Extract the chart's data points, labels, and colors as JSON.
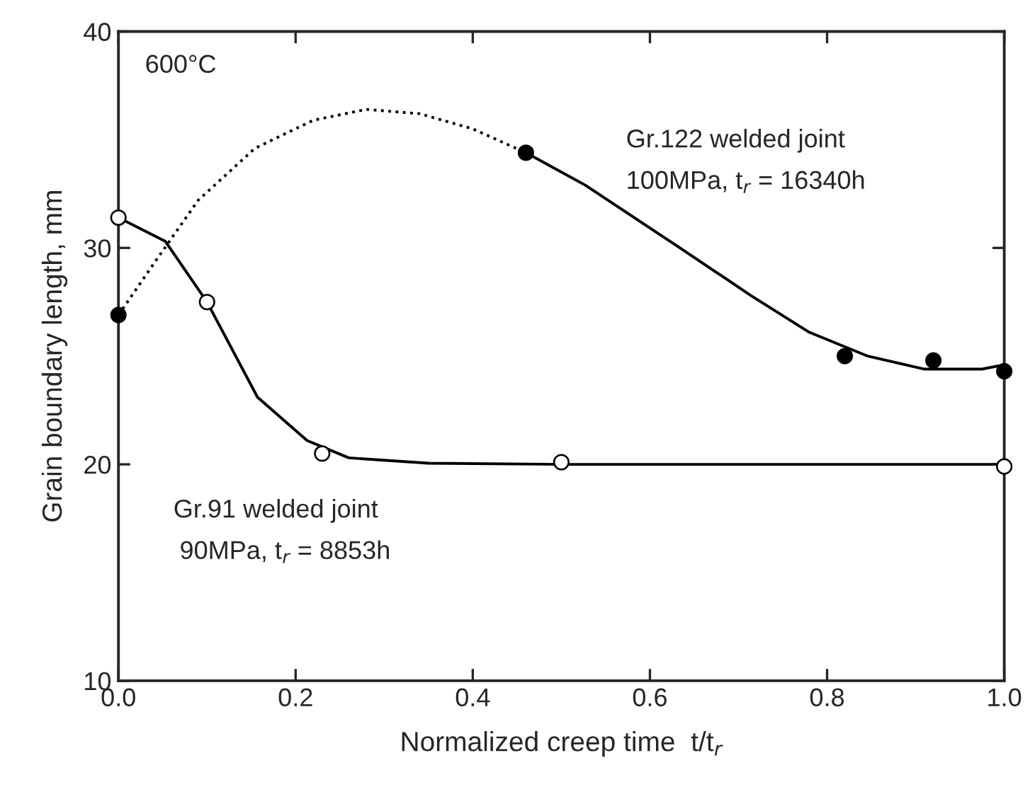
{
  "chart_data": {
    "type": "line",
    "xlabel": "Normalized creep time  t/t$_{r}$",
    "ylabel": "Grain boundary length, mm",
    "annotations": [
      "600°C",
      "Gr.122 welded joint",
      "100MPa, t$_{r}$ = 16340h",
      "Gr.91 welded joint",
      "90MPa, t$_{r}$ = 8853h"
    ],
    "xlim": [
      0,
      1
    ],
    "ylim": [
      10,
      40
    ],
    "xticks": [
      {
        "value": 0,
        "label": "0.0"
      },
      {
        "value": 0.2,
        "label": "0.2"
      },
      {
        "value": 0.4,
        "label": "0.4"
      },
      {
        "value": 0.6,
        "label": "0.6"
      },
      {
        "value": 0.8,
        "label": "0.8"
      },
      {
        "value": 1,
        "label": "1.0"
      }
    ],
    "yticks": [
      10,
      20,
      30,
      40
    ],
    "grid": false,
    "series": [
      {
        "color": "#000000",
        "line_style": "solid",
        "marker": "none",
        "x": [
          0,
          0.053,
          0.1,
          0.157,
          0.213,
          0.26,
          0.35,
          0.5,
          1.0
        ],
        "values": [
          31.4,
          30.3,
          27.5,
          23.1,
          21.1,
          20.3,
          20.05,
          20.0,
          20.0
        ]
      },
      {
        "color": "#000000",
        "line_style": "dotted",
        "marker": "none",
        "x": [
          0,
          0.042,
          0.09,
          0.154,
          0.22,
          0.28,
          0.34,
          0.4,
          0.46
        ],
        "values": [
          26.9,
          29.4,
          32.2,
          34.6,
          35.9,
          36.4,
          36.2,
          35.5,
          34.4
        ]
      },
      {
        "color": "#000000",
        "line_style": "solid",
        "marker": "none",
        "x": [
          0.46,
          0.527,
          0.634,
          0.714,
          0.78,
          0.846,
          0.91,
          0.975,
          1.0
        ],
        "values": [
          34.4,
          32.9,
          30.0,
          27.8,
          26.1,
          25.0,
          24.4,
          24.4,
          24.6
        ]
      },
      {
        "type": "scatter",
        "color": "#ffffff",
        "marker": "circle",
        "x": [
          0,
          0.1,
          0.23,
          0.5,
          1.0
        ],
        "values": [
          31.4,
          27.5,
          20.5,
          20.1,
          19.9
        ]
      },
      {
        "type": "scatter",
        "color": "#000000",
        "marker": "circle",
        "x": [
          0,
          0.46,
          0.82,
          0.92,
          1.0
        ],
        "values": [
          26.9,
          34.4,
          25.0,
          24.8,
          24.3
        ]
      }
    ]
  }
}
